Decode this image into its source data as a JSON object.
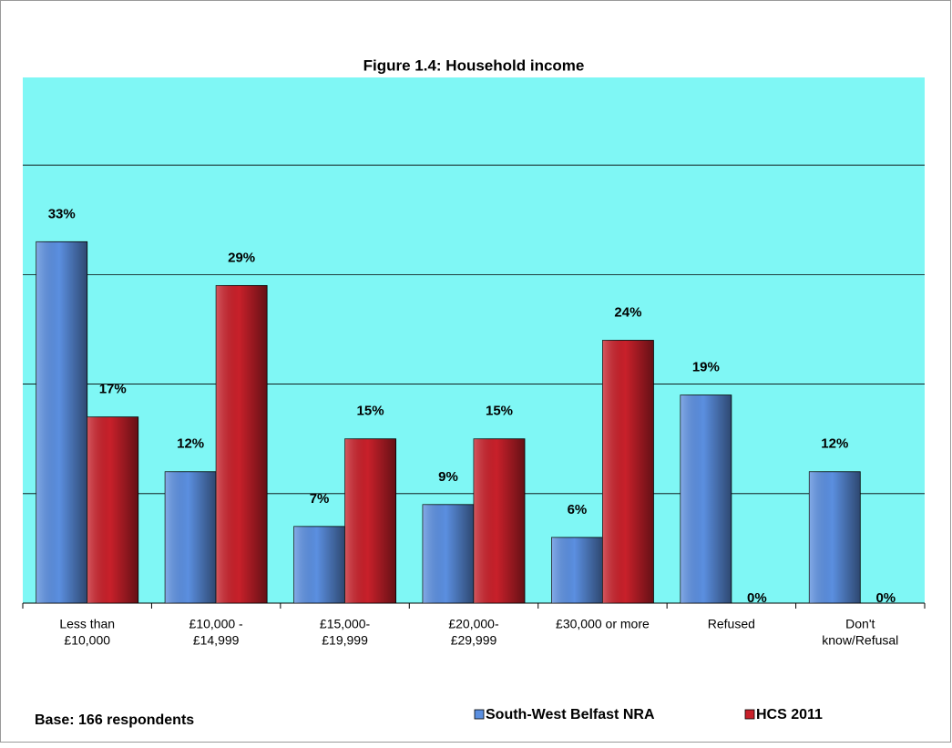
{
  "chart_data": {
    "type": "bar",
    "title": "Figure 1.4:  Household income",
    "categories": [
      [
        "Less than",
        "£10,000"
      ],
      [
        "£10,000 -",
        "£14,999"
      ],
      [
        "£15,000-",
        "£19,999"
      ],
      [
        "£20,000-",
        "£29,999"
      ],
      [
        "£30,000 or more"
      ],
      [
        "Refused"
      ],
      [
        "Don't",
        "know/Refusal"
      ]
    ],
    "series": [
      {
        "name": "South-West Belfast NRA",
        "color": "#5b8fe0",
        "values": [
          33,
          12,
          7,
          9,
          6,
          19,
          12
        ],
        "value_labels": [
          "33%",
          "12%",
          "7%",
          "9%",
          "6%",
          "19%",
          "12%"
        ]
      },
      {
        "name": "HCS 2011",
        "color": "#c8202a",
        "values": [
          17,
          29,
          15,
          15,
          24,
          0,
          0
        ],
        "value_labels": [
          "17%",
          "29%",
          "15%",
          "15%",
          "24%",
          "0%",
          "0%"
        ]
      }
    ],
    "ylim": [
      0,
      48
    ],
    "yticks": [
      0,
      10,
      20,
      30,
      40
    ],
    "grid": true,
    "legend": "bottom",
    "note": "Base: 166 respondents",
    "background": "#7ff7f5"
  }
}
